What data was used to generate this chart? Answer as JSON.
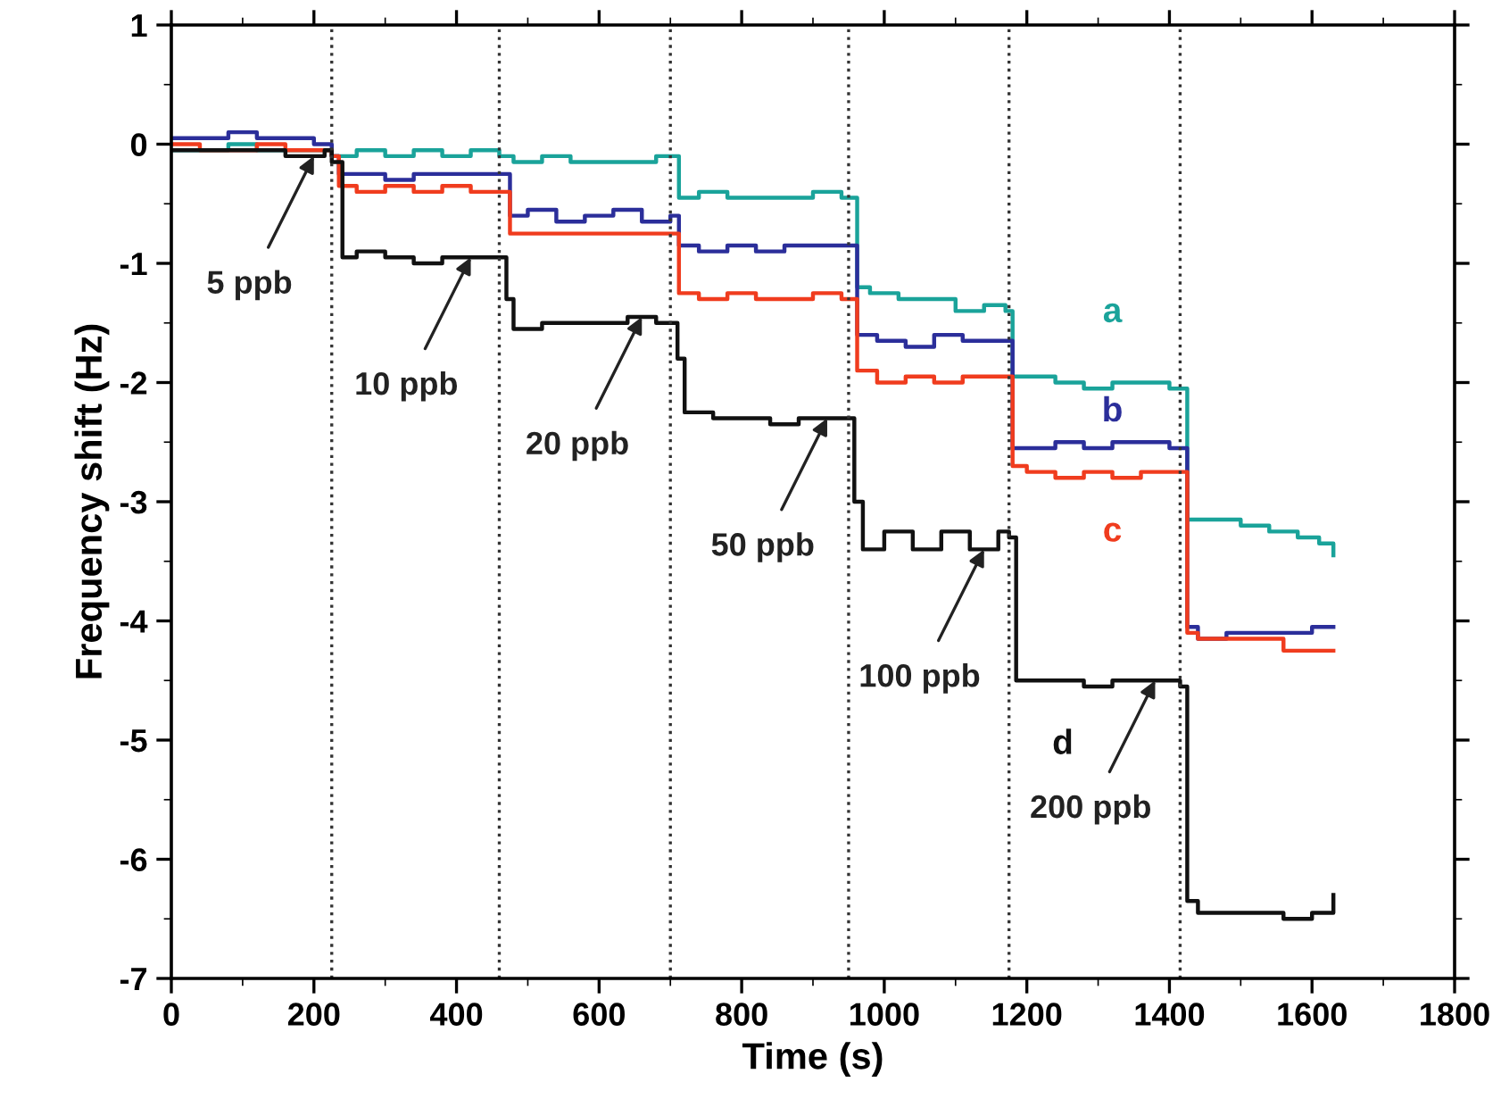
{
  "chart_data": {
    "type": "step",
    "xlabel": "Time (s)",
    "ylabel": "Frequency shift (Hz)",
    "xlim": [
      0,
      1800
    ],
    "xticks": [
      0,
      200,
      400,
      600,
      800,
      1000,
      1200,
      1400,
      1600,
      1800
    ],
    "ylim": [
      -7,
      1
    ],
    "yticks": [
      -7,
      -6,
      -5,
      -4,
      -3,
      -2,
      -1,
      0,
      1
    ],
    "grid": false,
    "legend": false,
    "line_style": "solid",
    "marker": "none",
    "series": [
      {
        "name": "a",
        "color": "#1aa39a",
        "x": [
          0,
          40,
          80,
          120,
          160,
          200,
          225,
          235,
          260,
          300,
          340,
          380,
          420,
          460,
          480,
          520,
          560,
          600,
          640,
          680,
          700,
          712,
          740,
          780,
          820,
          860,
          900,
          940,
          950,
          962,
          980,
          1020,
          1060,
          1100,
          1140,
          1170,
          1180,
          1200,
          1240,
          1280,
          1320,
          1360,
          1400,
          1415,
          1425,
          1450,
          1500,
          1540,
          1580,
          1610,
          1630
        ],
        "values": [
          -0.05,
          -0.05,
          0.0,
          -0.05,
          -0.05,
          -0.05,
          -0.1,
          -0.1,
          -0.05,
          -0.1,
          -0.05,
          -0.1,
          -0.05,
          -0.1,
          -0.15,
          -0.1,
          -0.15,
          -0.15,
          -0.15,
          -0.1,
          -0.1,
          -0.45,
          -0.4,
          -0.45,
          -0.45,
          -0.45,
          -0.4,
          -0.45,
          -0.45,
          -1.2,
          -1.25,
          -1.3,
          -1.3,
          -1.4,
          -1.35,
          -1.4,
          -1.95,
          -1.95,
          -2.0,
          -2.05,
          -2.0,
          -2.0,
          -2.05,
          -2.05,
          -3.15,
          -3.15,
          -3.2,
          -3.25,
          -3.3,
          -3.35,
          -3.45
        ]
      },
      {
        "name": "b",
        "color": "#2b2e9a",
        "x": [
          0,
          40,
          80,
          120,
          160,
          200,
          225,
          235,
          260,
          300,
          340,
          380,
          420,
          460,
          475,
          500,
          540,
          580,
          620,
          660,
          700,
          712,
          740,
          780,
          820,
          860,
          900,
          940,
          950,
          962,
          990,
          1030,
          1070,
          1110,
          1150,
          1170,
          1180,
          1200,
          1240,
          1280,
          1320,
          1360,
          1400,
          1415,
          1425,
          1440,
          1480,
          1520,
          1560,
          1600,
          1630
        ],
        "values": [
          0.05,
          0.05,
          0.1,
          0.05,
          0.05,
          0.0,
          -0.1,
          -0.25,
          -0.25,
          -0.3,
          -0.25,
          -0.25,
          -0.25,
          -0.25,
          -0.6,
          -0.55,
          -0.65,
          -0.6,
          -0.55,
          -0.65,
          -0.6,
          -0.85,
          -0.9,
          -0.85,
          -0.9,
          -0.85,
          -0.85,
          -0.85,
          -0.85,
          -1.6,
          -1.65,
          -1.7,
          -1.6,
          -1.65,
          -1.65,
          -1.65,
          -2.55,
          -2.55,
          -2.5,
          -2.55,
          -2.5,
          -2.5,
          -2.55,
          -2.55,
          -4.05,
          -4.15,
          -4.1,
          -4.1,
          -4.1,
          -4.05,
          -4.05
        ]
      },
      {
        "name": "c",
        "color": "#f03c1e",
        "x": [
          0,
          40,
          80,
          120,
          160,
          200,
          225,
          235,
          260,
          300,
          340,
          380,
          420,
          460,
          475,
          500,
          540,
          580,
          620,
          660,
          700,
          712,
          740,
          780,
          820,
          860,
          900,
          940,
          950,
          962,
          990,
          1030,
          1070,
          1110,
          1150,
          1170,
          1180,
          1200,
          1240,
          1280,
          1320,
          1360,
          1400,
          1415,
          1425,
          1440,
          1480,
          1520,
          1560,
          1600,
          1630
        ],
        "values": [
          0.0,
          -0.05,
          -0.05,
          0.0,
          -0.05,
          -0.05,
          -0.1,
          -0.35,
          -0.4,
          -0.35,
          -0.4,
          -0.35,
          -0.4,
          -0.4,
          -0.75,
          -0.75,
          -0.75,
          -0.75,
          -0.75,
          -0.75,
          -0.75,
          -1.25,
          -1.3,
          -1.25,
          -1.3,
          -1.3,
          -1.25,
          -1.3,
          -1.3,
          -1.9,
          -2.0,
          -1.95,
          -2.0,
          -1.95,
          -1.95,
          -1.95,
          -2.7,
          -2.75,
          -2.8,
          -2.75,
          -2.8,
          -2.75,
          -2.75,
          -2.75,
          -4.1,
          -4.15,
          -4.15,
          -4.15,
          -4.25,
          -4.25,
          -4.25
        ]
      },
      {
        "name": "d",
        "color": "#111111",
        "x": [
          0,
          40,
          80,
          120,
          160,
          200,
          215,
          225,
          240,
          260,
          300,
          340,
          380,
          420,
          460,
          470,
          480,
          520,
          560,
          600,
          640,
          680,
          700,
          710,
          720,
          760,
          800,
          840,
          880,
          920,
          950,
          958,
          970,
          1000,
          1040,
          1080,
          1120,
          1160,
          1175,
          1185,
          1200,
          1240,
          1280,
          1320,
          1360,
          1400,
          1415,
          1425,
          1440,
          1480,
          1520,
          1560,
          1600,
          1630
        ],
        "values": [
          -0.05,
          -0.05,
          -0.05,
          -0.05,
          -0.1,
          -0.1,
          -0.05,
          -0.15,
          -0.95,
          -0.9,
          -0.95,
          -1.0,
          -0.95,
          -0.95,
          -0.95,
          -1.3,
          -1.55,
          -1.5,
          -1.5,
          -1.5,
          -1.45,
          -1.5,
          -1.5,
          -1.8,
          -2.25,
          -2.3,
          -2.3,
          -2.35,
          -2.3,
          -2.3,
          -2.3,
          -3.0,
          -3.4,
          -3.25,
          -3.4,
          -3.25,
          -3.4,
          -3.25,
          -3.3,
          -4.5,
          -4.5,
          -4.5,
          -4.55,
          -4.5,
          -4.5,
          -4.5,
          -4.55,
          -6.35,
          -6.45,
          -6.45,
          -6.45,
          -6.5,
          -6.45,
          -6.3
        ]
      }
    ],
    "ref_lines": [
      {
        "axis": "x",
        "value": 225,
        "color": "#333333",
        "line_style": "dotted"
      },
      {
        "axis": "x",
        "value": 460,
        "color": "#333333",
        "line_style": "dotted"
      },
      {
        "axis": "x",
        "value": 700,
        "color": "#333333",
        "line_style": "dotted"
      },
      {
        "axis": "x",
        "value": 950,
        "color": "#333333",
        "line_style": "dotted"
      },
      {
        "axis": "x",
        "value": 1175,
        "color": "#333333",
        "line_style": "dotted"
      },
      {
        "axis": "x",
        "value": 1415,
        "color": "#333333",
        "line_style": "dotted"
      }
    ],
    "annotations": [
      {
        "text": "5 ppb",
        "x": 200,
        "y": -0.1
      },
      {
        "text": "10 ppb",
        "x": 420,
        "y": -0.95
      },
      {
        "text": "20 ppb",
        "x": 660,
        "y": -1.45
      },
      {
        "text": "50 ppb",
        "x": 920,
        "y": -2.3
      },
      {
        "text": "100 ppb",
        "x": 1140,
        "y": -3.4
      },
      {
        "text": "200 ppb",
        "x": 1380,
        "y": -4.5
      }
    ]
  }
}
